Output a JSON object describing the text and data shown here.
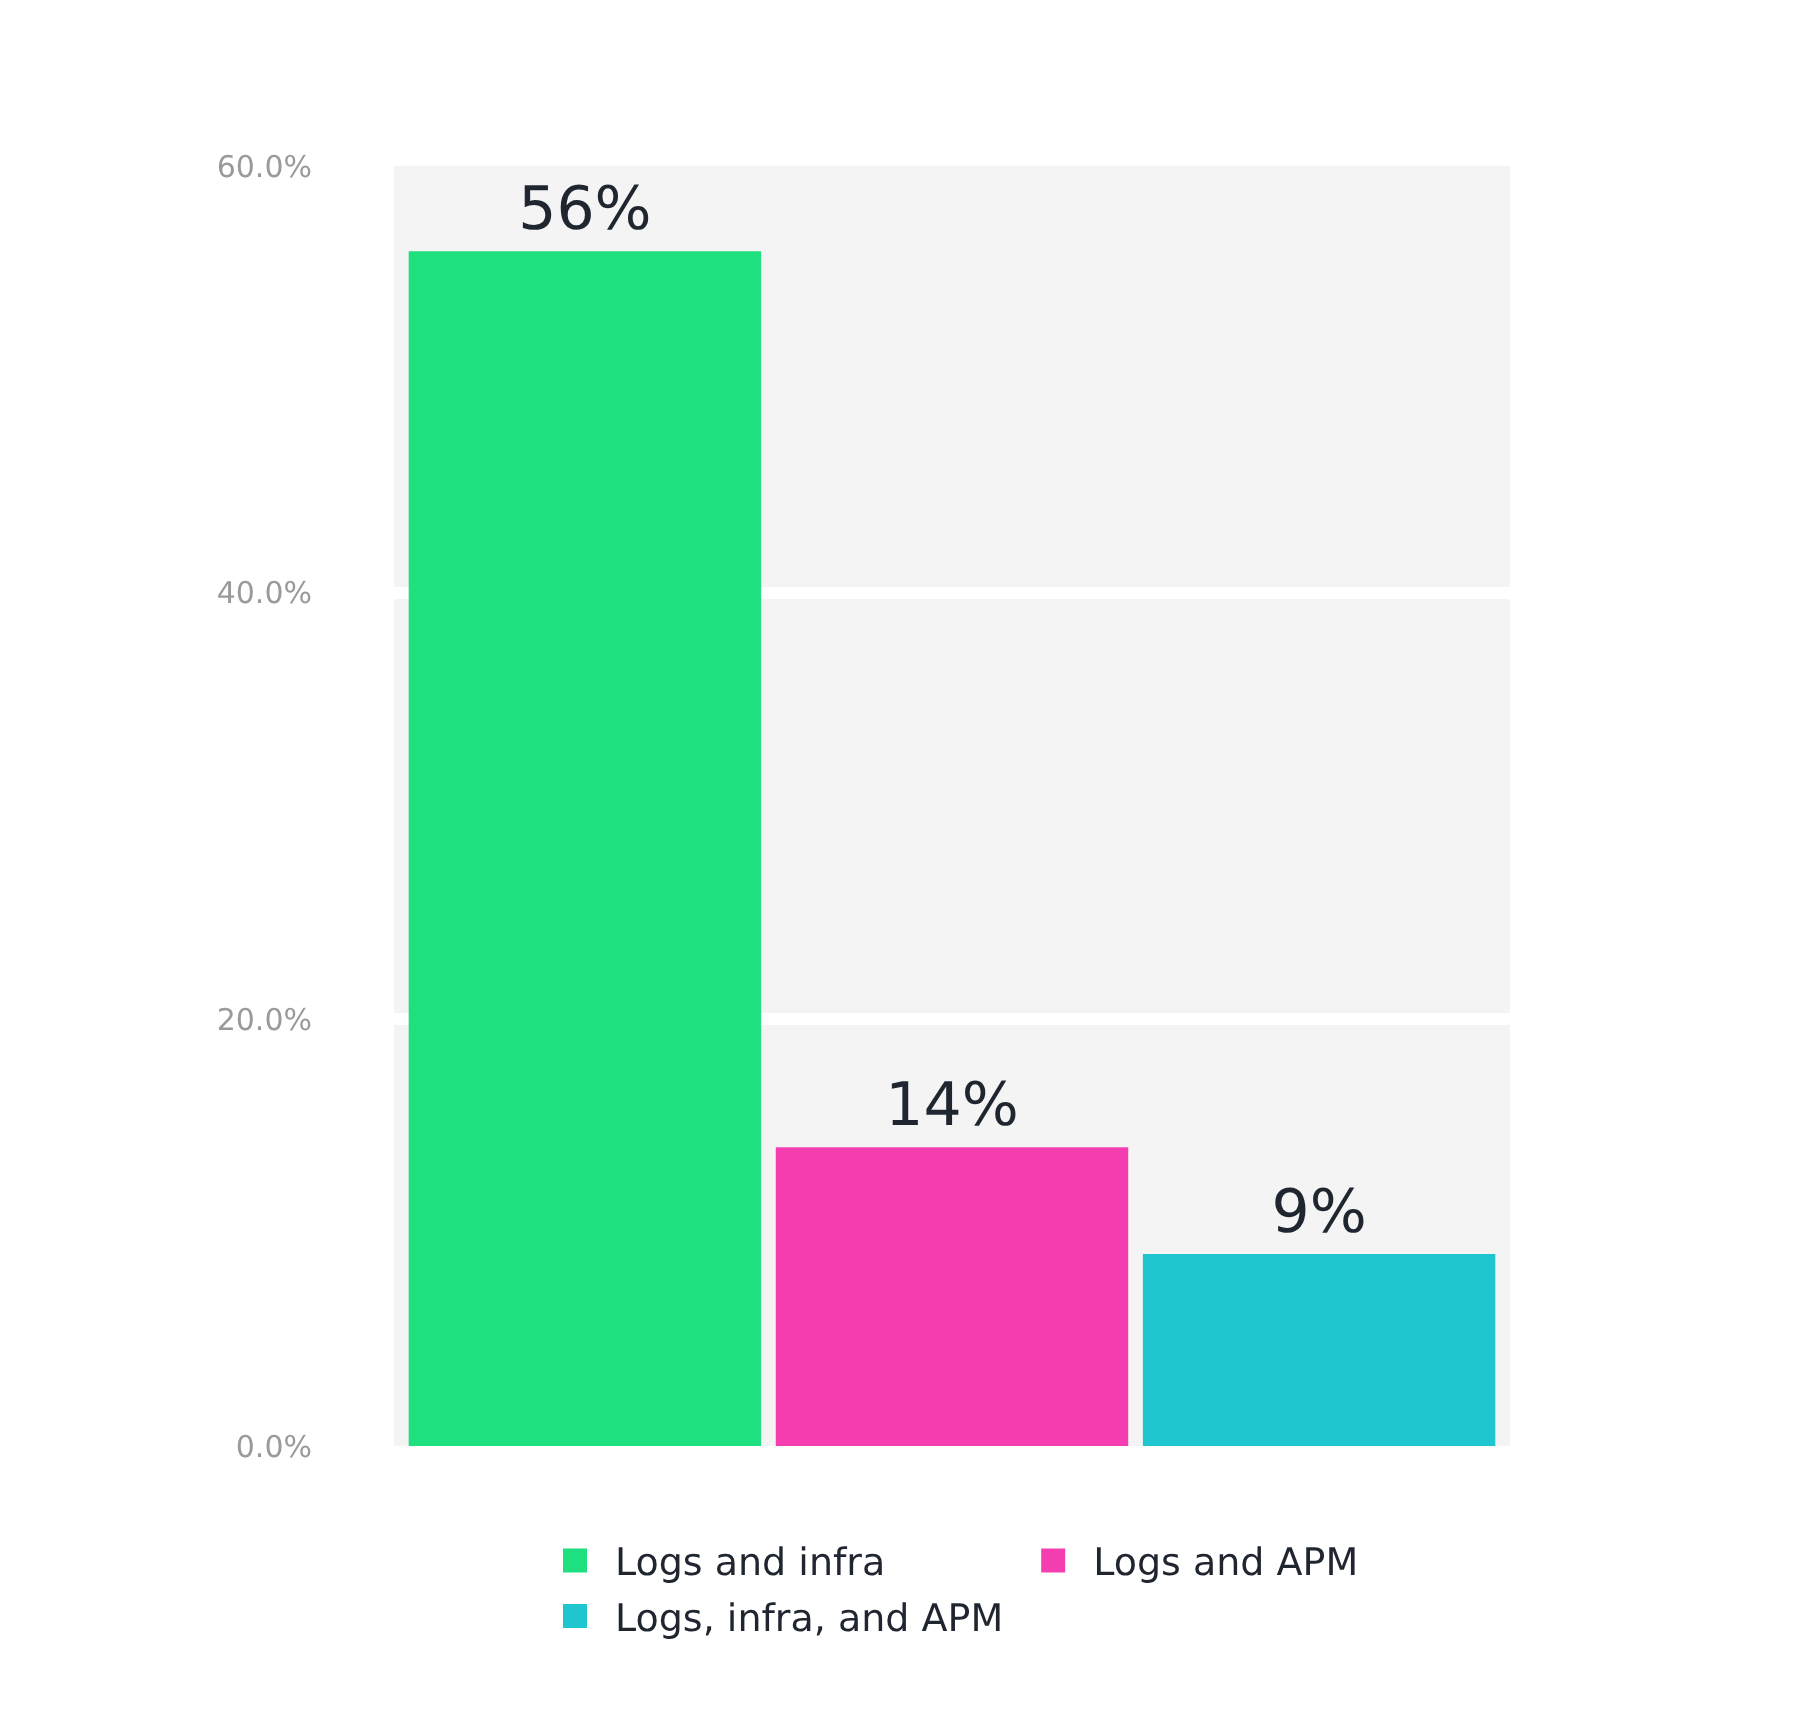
{
  "chart_data": {
    "type": "bar",
    "categories": [
      null,
      null,
      null
    ],
    "series": [
      {
        "name": "Logs and infra",
        "color": "#1ee07f",
        "values": [
          56,
          null,
          null
        ]
      },
      {
        "name": "Logs and APM",
        "color": "#f53fb0",
        "values": [
          null,
          14,
          null
        ]
      },
      {
        "name": "Logs, infra, and APM",
        "color": "#1fc5cf",
        "values": [
          null,
          null,
          9
        ]
      }
    ],
    "value_labels": [
      "56%",
      "14%",
      "9%"
    ],
    "ylim": [
      0,
      60
    ],
    "yticks": [
      {
        "value": 0,
        "label": "0.0%"
      },
      {
        "value": 20,
        "label": "20.0%"
      },
      {
        "value": 40,
        "label": "40.0%"
      },
      {
        "value": 60,
        "label": "60.0%"
      }
    ],
    "grid": "y",
    "legend": "bottom",
    "tick_labels": "y"
  }
}
